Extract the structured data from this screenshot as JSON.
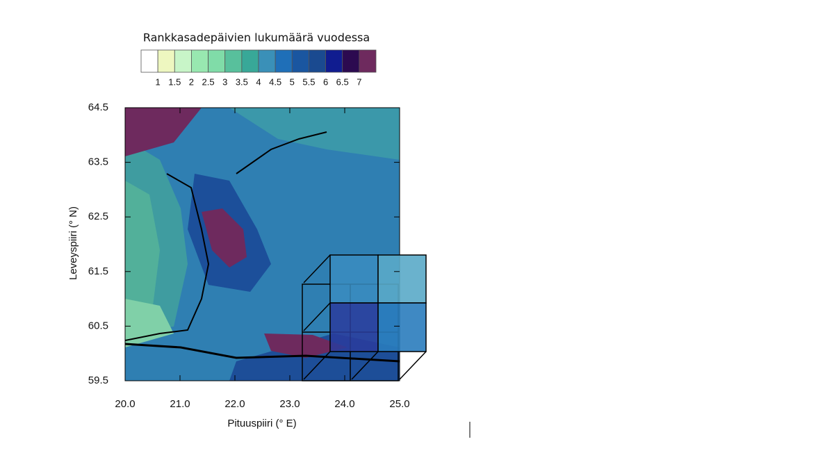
{
  "colorbar": {
    "title": "Rankkasadepäivien lukumäärä vuodessa",
    "levels": [
      1,
      1.5,
      2,
      2.5,
      3,
      3.5,
      4,
      4.5,
      5,
      5.5,
      6,
      6.5,
      7
    ],
    "colors": [
      "#ffffff",
      "#eef7c0",
      "#c8f5c8",
      "#98e8b0",
      "#80dca8",
      "#58c09c",
      "#38a898",
      "#3a90b8",
      "#1f6fb8",
      "#1a56a0",
      "#1a4a90",
      "#101c90",
      "#2c0a50",
      "#6e2a5e"
    ]
  },
  "axes": {
    "xlabel": "Pituuspiiri (° E)",
    "ylabel": "Leveyspiiri (° N)",
    "xlim": [
      20,
      25
    ],
    "ylim": [
      59.5,
      64.5
    ],
    "xticks": [
      {
        "value": 20,
        "label": "20.0"
      },
      {
        "value": 21,
        "label": "21.0"
      },
      {
        "value": 22,
        "label": "22.0"
      },
      {
        "value": 23,
        "label": "23.0"
      },
      {
        "value": 24,
        "label": "24.0"
      },
      {
        "value": 25,
        "label": "25.0"
      }
    ],
    "yticks": [
      64.5,
      63.5,
      62.5,
      61.5,
      60.5,
      59.5
    ]
  }
}
